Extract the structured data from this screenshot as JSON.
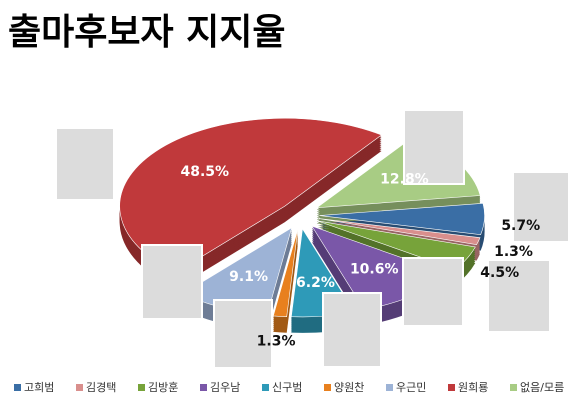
{
  "chart_data": {
    "type": "pie",
    "title": "출마후보자 지지율",
    "categories": [
      "고희범",
      "김경택",
      "김방훈",
      "김우남",
      "신구범",
      "양원찬",
      "우근민",
      "원희룡",
      "없음/모름"
    ],
    "values": [
      5.7,
      1.3,
      4.5,
      10.6,
      6.2,
      1.3,
      9.1,
      48.5,
      12.8
    ],
    "value_labels": [
      "5.7%",
      "1.3%",
      "4.5%",
      "10.6%",
      "6.2%",
      "1.3%",
      "9.1%",
      "48.5%",
      "12.8%"
    ],
    "colors": [
      "#3a6ea5",
      "#d98f8d",
      "#77a33a",
      "#7a57a8",
      "#2e9ab8",
      "#e8801e",
      "#9db3d6",
      "#c0393b",
      "#a8cc84"
    ],
    "legend": "bottom"
  }
}
